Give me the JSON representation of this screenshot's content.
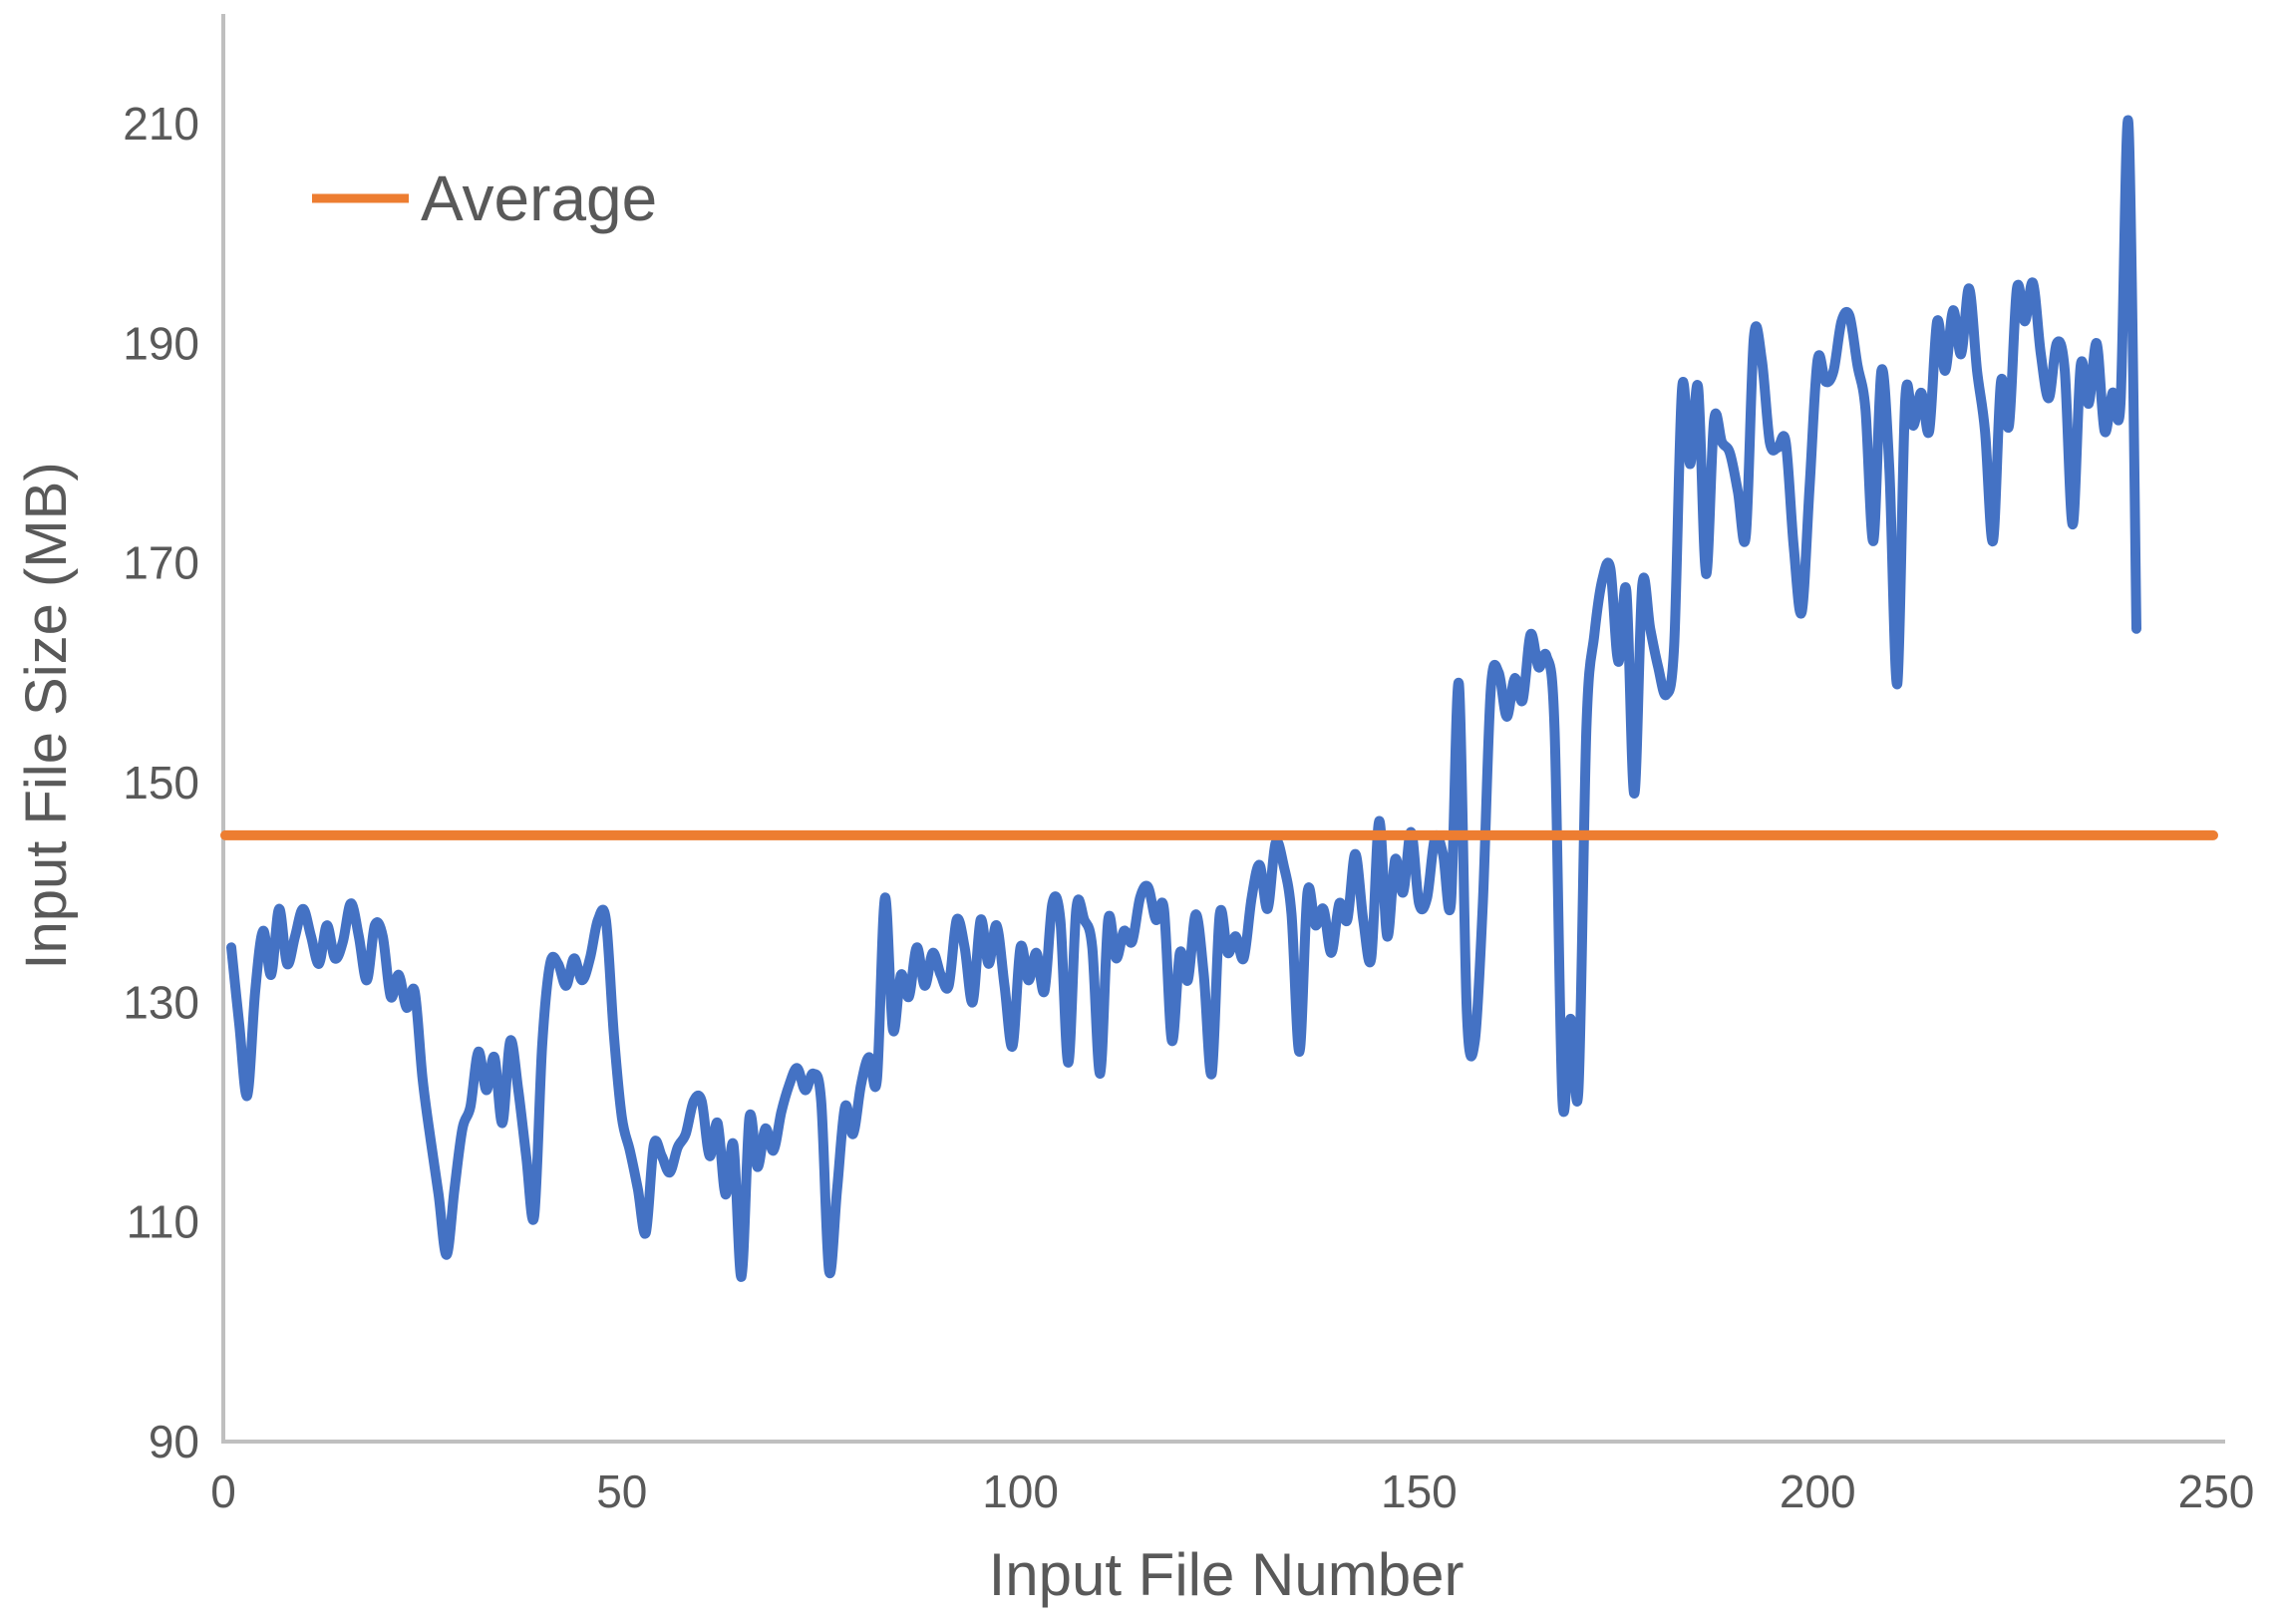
{
  "chart_data": {
    "type": "line",
    "title": "",
    "xlabel": "Input File Number",
    "ylabel": "Input File Size (MB)",
    "xlim": [
      0,
      250
    ],
    "ylim": [
      90,
      210
    ],
    "x_ticks": [
      0,
      50,
      100,
      150,
      200,
      250
    ],
    "y_ticks": [
      90,
      110,
      130,
      150,
      170,
      190,
      210
    ],
    "grid": false,
    "legend": {
      "position": "top-left",
      "entries": [
        {
          "label": "Average",
          "color": "#ED7D31"
        }
      ]
    },
    "series": [
      {
        "name": "Input File Size",
        "type": "line",
        "smooth": true,
        "color": "#4472C4",
        "x_start": 1,
        "values": [
          135,
          128,
          121.5,
          131,
          136.5,
          132.5,
          138.5,
          133.5,
          136,
          138.5,
          136,
          133.5,
          137,
          134,
          135.5,
          139,
          136,
          132,
          137,
          136,
          130.5,
          132.5,
          129.5,
          131,
          123,
          117.5,
          112.5,
          107,
          113,
          118.5,
          120.5,
          125.5,
          122,
          125,
          119,
          126.5,
          122,
          116,
          110.5,
          126,
          133.5,
          133.5,
          131.5,
          134,
          132,
          134,
          137.5,
          137.5,
          127,
          119.5,
          116.5,
          113,
          109,
          117,
          116,
          114.5,
          116.8,
          118,
          121,
          121,
          116,
          119,
          112.5,
          117,
          105,
          119.5,
          115,
          118.5,
          116.5,
          120,
          122.5,
          124,
          122,
          123.5,
          121,
          105.5,
          113,
          120.5,
          118,
          122.5,
          125,
          123,
          139.5,
          127.5,
          132.5,
          130.5,
          135,
          131.5,
          134.5,
          132.5,
          131.5,
          137.5,
          135,
          130,
          137.5,
          133.5,
          137,
          131.5,
          126,
          135,
          132,
          134.5,
          131,
          139,
          137.5,
          124.5,
          138.5,
          137.5,
          135,
          123.5,
          137.5,
          134,
          136.5,
          135.5,
          139.5,
          140.5,
          137.5,
          138.5,
          126.5,
          134.5,
          132,
          138,
          132.5,
          123.5,
          138,
          134.5,
          136,
          134,
          139.5,
          142.5,
          138.5,
          144.5,
          142.5,
          138,
          125.5,
          140,
          137,
          138.5,
          134.5,
          139,
          137.5,
          143.5,
          137.5,
          134,
          146.5,
          136,
          143,
          140,
          145.5,
          139,
          139.5,
          145,
          143.5,
          139,
          159,
          129,
          126.5,
          139,
          158.5,
          160,
          156,
          159.5,
          157.5,
          163.5,
          160.5,
          161.5,
          155,
          121,
          128.5,
          122,
          155,
          163.5,
          168.5,
          169.5,
          161,
          167.5,
          149,
          168,
          164,
          160.5,
          158,
          162.5,
          186,
          179,
          186,
          169,
          183,
          181,
          180,
          176.5,
          172.5,
          190.5,
          188.5,
          181,
          180.5,
          181,
          171.5,
          165.5,
          177,
          188.5,
          186.5,
          187.5,
          192,
          192.5,
          188,
          184,
          172,
          187.5,
          178.5,
          159,
          185,
          182.5,
          185.5,
          182,
          192,
          187.5,
          193,
          189,
          195,
          187.5,
          182,
          172,
          186.5,
          182.5,
          195,
          192,
          195.5,
          189,
          185,
          190,
          187.5,
          173.5,
          188,
          184.5,
          190,
          182,
          185.5,
          184.5,
          210,
          164
        ]
      },
      {
        "name": "Average",
        "type": "horizontal-line",
        "color": "#ED7D31",
        "value": 145.2
      }
    ]
  },
  "legend": {
    "label": "Average"
  },
  "axes": {
    "y_title": "Input File Size (MB)",
    "x_title": "Input File Number"
  },
  "colors": {
    "series_blue": "#4472C4",
    "average_orange": "#ED7D31",
    "text_gray": "#595959",
    "axis_gray": "#BFBFBF"
  }
}
